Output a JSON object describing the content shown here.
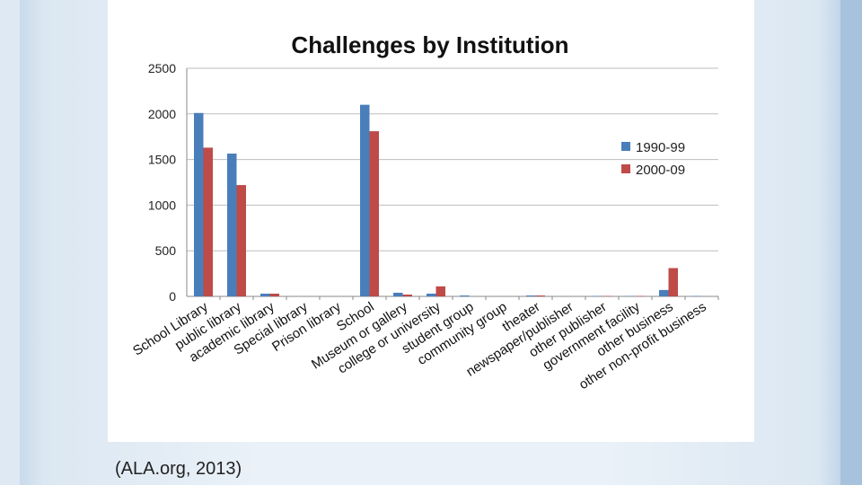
{
  "caption": "(ALA.org, 2013)",
  "chart_data": {
    "type": "bar",
    "title": "Challenges by Institution",
    "xlabel": "",
    "ylabel": "",
    "ylim": [
      0,
      2500
    ],
    "yticks": [
      0,
      500,
      1000,
      1500,
      2000,
      2500
    ],
    "grid": true,
    "legend_position": "right",
    "categories": [
      "School Library",
      "public library",
      "academic library",
      "Special library",
      "Prison library",
      "School",
      "Museum or gallery",
      "college or university",
      "student group",
      "community group",
      "theater",
      "newspaper/publisher",
      "other publisher",
      "government facility",
      "other business",
      "other non-profit business"
    ],
    "series": [
      {
        "name": "1990-99",
        "color": "#4a7ebb",
        "values": [
          2010,
          1565,
          30,
          0,
          0,
          2100,
          40,
          30,
          10,
          0,
          10,
          0,
          5,
          5,
          70,
          5
        ]
      },
      {
        "name": "2000-09",
        "color": "#be4b48",
        "values": [
          1630,
          1220,
          30,
          0,
          0,
          1810,
          20,
          110,
          0,
          0,
          10,
          0,
          5,
          5,
          310,
          0
        ]
      }
    ]
  }
}
